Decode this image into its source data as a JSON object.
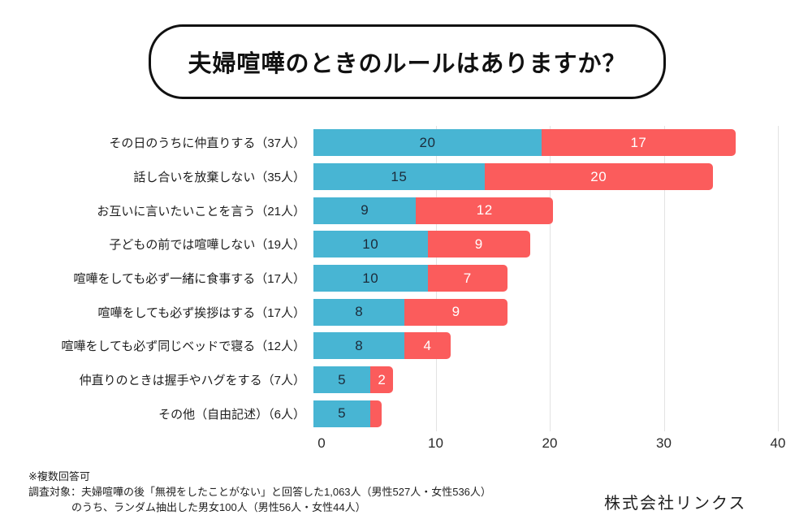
{
  "title": "夫婦喧嘩のときのルールはありますか？",
  "chart_data": {
    "type": "bar",
    "orientation": "horizontal",
    "stacked": true,
    "title": "夫婦喧嘩のときのルールはありますか？",
    "categories": [
      "その日のうちに仲直りする（37人）",
      "話し合いを放棄しない（35人）",
      "お互いに言いたいことを言う（21人）",
      "子どもの前では喧嘩しない（19人）",
      "喧嘩をしても必ず一緒に食事する（17人）",
      "喧嘩をしても必ず挨拶はする（17人）",
      "喧嘩をしても必ず同じベッドで寝る（12人）",
      "仲直りのときは握手やハグをする（7人）",
      "その他（自由記述）（6人）"
    ],
    "category_totals": [
      37,
      35,
      21,
      19,
      17,
      17,
      12,
      7,
      6
    ],
    "series": [
      {
        "name": "segment-blue",
        "color": "#48b5d3",
        "label_color": "#1c2b3a",
        "values": [
          20,
          15,
          9,
          10,
          10,
          8,
          8,
          5,
          5
        ],
        "labels": [
          "20",
          "15",
          "9",
          "10",
          "10",
          "8",
          "8",
          "5",
          "5"
        ]
      },
      {
        "name": "segment-red",
        "color": "#fb5c5c",
        "label_color": "#ffffff",
        "values": [
          17,
          20,
          12,
          9,
          7,
          9,
          4,
          2,
          1
        ],
        "labels": [
          "17",
          "20",
          "12",
          "9",
          "7",
          "9",
          "4",
          "2",
          ""
        ]
      }
    ],
    "xlim": [
      0,
      40
    ],
    "xticks": [
      0,
      10,
      20,
      30,
      40
    ],
    "grid": "vertical",
    "legend": "none"
  },
  "footnotes": {
    "note": "※複数回答可",
    "line1": "調査対象：夫婦喧嘩の後「無視をしたことがない」と回答した1,063人（男性527人・女性536人）",
    "line2": "のうち、ランダム抽出した男女100人（男性56人・女性44人）"
  },
  "company": "株式会社リンクス"
}
